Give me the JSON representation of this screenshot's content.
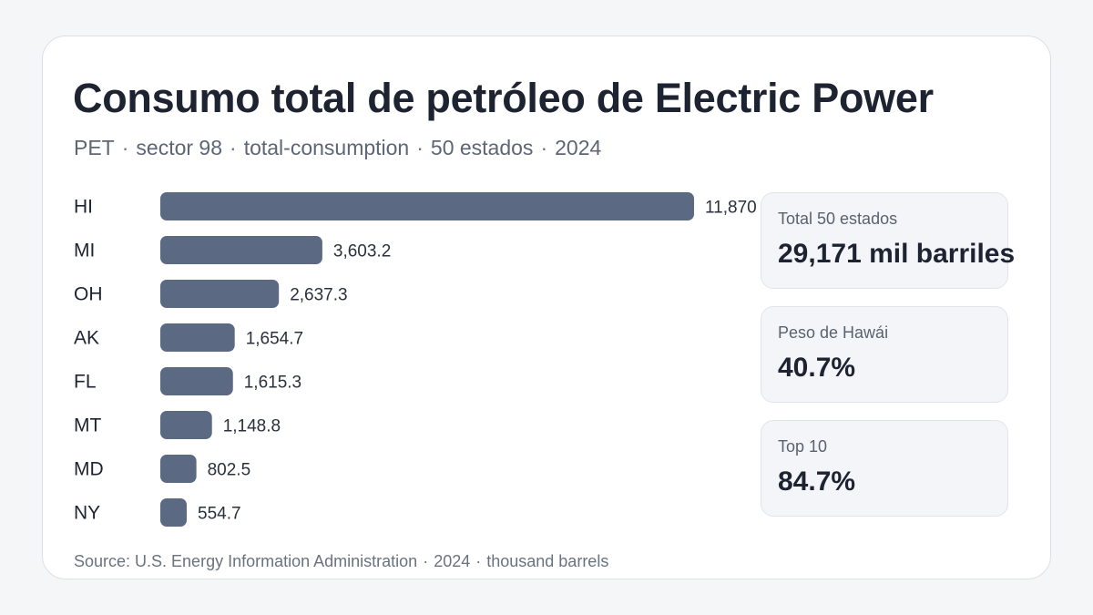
{
  "title": "Consumo total de petróleo de Electric Power",
  "subtitle": {
    "parts": [
      "PET",
      "sector 98",
      "total-consumption",
      "50 estados",
      "2024"
    ],
    "separator": "·"
  },
  "chart_data": {
    "type": "bar",
    "orientation": "horizontal",
    "categories": [
      "HI",
      "MI",
      "OH",
      "AK",
      "FL",
      "MT",
      "MD",
      "NY"
    ],
    "values": [
      11870,
      3603.2,
      2637.3,
      1654.7,
      1615.3,
      1148.8,
      802.5,
      554.7
    ],
    "value_labels": [
      "11,870",
      "3,603.2",
      "2,637.3",
      "1,654.7",
      "1,615.3",
      "1,148.8",
      "802.5",
      "554.7"
    ],
    "title": "Consumo total de petróleo de Electric Power",
    "xlabel": "",
    "ylabel": "",
    "grid": false,
    "colors": {
      "bar": "#5b6982"
    }
  },
  "stats": [
    {
      "label": "Total 50 estados",
      "value": "29,171 mil barriles"
    },
    {
      "label": "Peso de Hawái",
      "value": "40.7%"
    },
    {
      "label": "Top 10",
      "value": "84.7%"
    }
  ],
  "footer": {
    "parts": [
      "Source: U.S. Energy Information Administration",
      "2024",
      "thousand barrels"
    ],
    "separator": "·"
  }
}
